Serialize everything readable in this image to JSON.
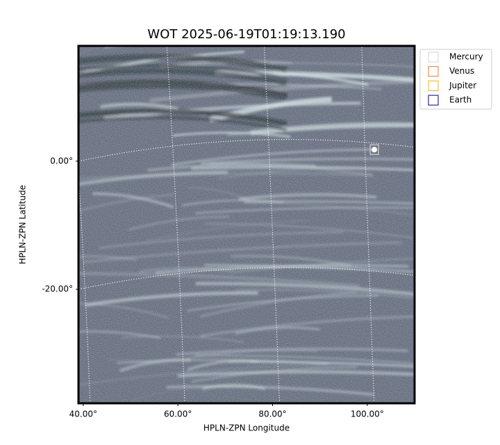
{
  "chart_data": {
    "type": "image",
    "title": "WOT 2025-06-19T01:19:13.190",
    "xlabel": "HPLN-ZPN Longitude",
    "ylabel": "HPLN-ZPN Latitude",
    "xlim": [
      39,
      110
    ],
    "ylim": [
      -37.8,
      18
    ],
    "xticks": [
      {
        "value": 40,
        "label": "40.00°"
      },
      {
        "value": 60,
        "label": "60.00°"
      },
      {
        "value": 80,
        "label": "80.00°"
      },
      {
        "value": 100,
        "label": "100.00°"
      }
    ],
    "yticks": [
      {
        "value": 0,
        "label": "0.00°"
      },
      {
        "value": -20,
        "label": "-20.00°"
      }
    ],
    "grid": true,
    "legend": "outside upper right",
    "series": [
      {
        "name": "Mercury",
        "color": "#d3d3d3",
        "x": [
          101.5
        ],
        "y": [
          1.8
        ]
      },
      {
        "name": "Venus",
        "color": "#e07b39",
        "x": [],
        "y": []
      },
      {
        "name": "Jupiter",
        "color": "#e6b422",
        "x": [],
        "y": []
      },
      {
        "name": "Earth",
        "color": "#000080",
        "x": [],
        "y": []
      }
    ]
  }
}
